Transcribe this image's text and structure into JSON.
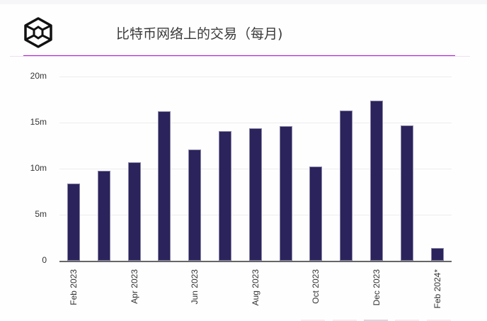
{
  "header": {
    "title": "比特币网络上的交易（每月)",
    "logo_icon": "hexagon-cube-logo-icon",
    "divider_color": "#b21bd0"
  },
  "chart_data": {
    "type": "bar",
    "title": "比特币网络上的交易（每月)",
    "xlabel": "",
    "ylabel": "",
    "ylim": [
      0,
      20
    ],
    "y_unit": "m",
    "y_ticks": [
      "0",
      "5m",
      "10m",
      "15m",
      "20m"
    ],
    "grid": true,
    "legend": "none",
    "bar_color": "#2b235b",
    "categories": [
      "Feb 2023",
      "Mar 2023",
      "Apr 2023",
      "May 2023",
      "Jun 2023",
      "Jul 2023",
      "Aug 2023",
      "Sep 2023",
      "Oct 2023",
      "Nov 2023",
      "Dec 2023",
      "Jan 2024",
      "Feb 2024*"
    ],
    "x_tick_labels": [
      "Feb 2023",
      "",
      "Apr 2023",
      "",
      "Jun 2023",
      "",
      "Aug 2023",
      "",
      "Oct 2023",
      "",
      "Dec 2023",
      "",
      "Feb 2024*"
    ],
    "values": [
      8.4,
      9.8,
      10.7,
      16.2,
      12.1,
      14.1,
      14.4,
      14.6,
      10.2,
      16.3,
      17.4,
      14.7,
      1.4
    ]
  }
}
